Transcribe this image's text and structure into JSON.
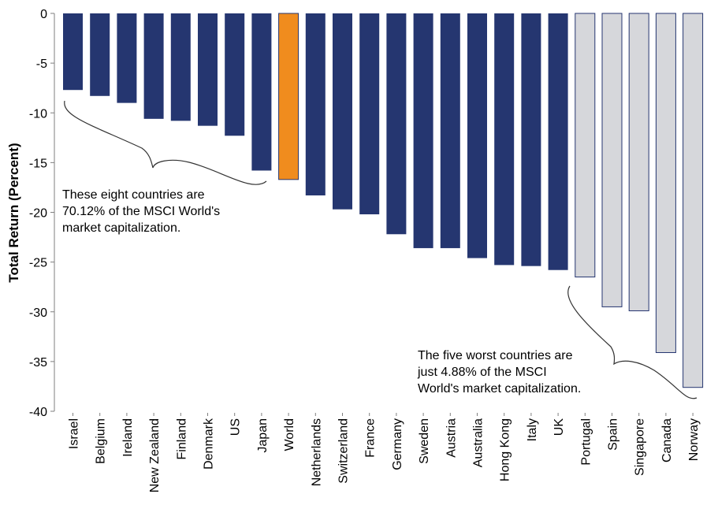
{
  "chart_data": {
    "type": "bar",
    "title": "",
    "xlabel": "",
    "ylabel": "Total Return (Percent)",
    "ylim": [
      -40,
      0
    ],
    "yticks": [
      0,
      -5,
      -10,
      -15,
      -20,
      -25,
      -30,
      -35,
      -40
    ],
    "grid": false,
    "categories": [
      "Israel",
      "Belgium",
      "Ireland",
      "New Zealand",
      "Finland",
      "Denmark",
      "US",
      "Japan",
      "World",
      "Netherlands",
      "Switzerland",
      "France",
      "Germany",
      "Sweden",
      "Austria",
      "Australia",
      "Hong Kong",
      "Italy",
      "UK",
      "Portugal",
      "Spain",
      "Singapore",
      "Canada",
      "Norway"
    ],
    "values": [
      -7.7,
      -8.3,
      -9.0,
      -10.6,
      -10.8,
      -11.3,
      -12.3,
      -15.8,
      -16.7,
      -18.3,
      -19.7,
      -20.2,
      -22.2,
      -23.6,
      -23.6,
      -24.6,
      -25.3,
      -25.4,
      -25.8,
      -26.5,
      -29.5,
      -29.9,
      -34.1,
      -37.6
    ],
    "bar_groups": [
      "top",
      "top",
      "top",
      "top",
      "top",
      "top",
      "top",
      "top",
      "world",
      "mid",
      "mid",
      "mid",
      "mid",
      "mid",
      "mid",
      "mid",
      "mid",
      "mid",
      "mid",
      "worst",
      "worst",
      "worst",
      "worst",
      "worst"
    ],
    "colors": {
      "top": "#253670",
      "mid": "#253670",
      "world": "#f08c1e",
      "worst": "#d6d7db",
      "worst_border": "#253670",
      "axis": "#7f7f7f"
    },
    "annotations": [
      {
        "lines": [
          "These eight countries are",
          "70.12% of the MSCI World's",
          "market capitalization."
        ]
      },
      {
        "lines": [
          "The five worst countries are",
          "just 4.88% of the MSCI",
          "World's market capitalization."
        ]
      }
    ]
  }
}
